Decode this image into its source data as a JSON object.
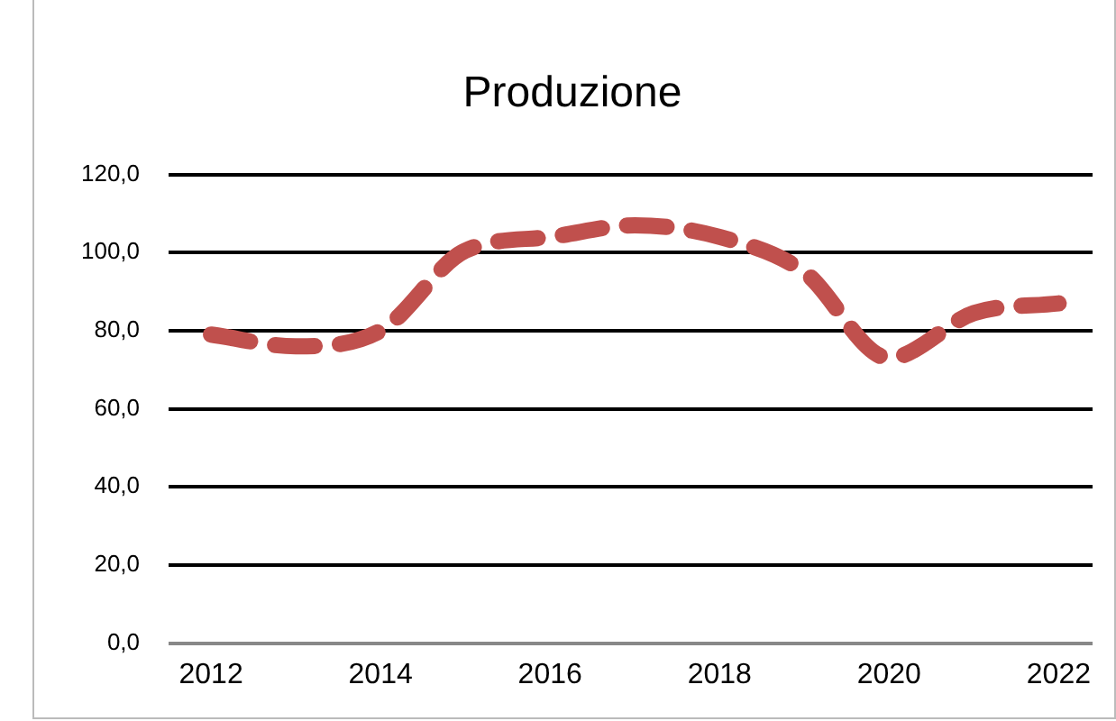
{
  "chart_data": {
    "type": "line",
    "title": "Produzione",
    "x": [
      2012,
      2013,
      2014,
      2015,
      2016,
      2017,
      2018,
      2019,
      2020,
      2021,
      2022
    ],
    "series": [
      {
        "color": "#c0504d",
        "values": [
          79,
          76,
          80,
          100.5,
          104,
          107,
          104,
          95,
          73,
          84.5,
          87
        ]
      }
    ],
    "xlim": [
      2011.5,
      2022.4
    ],
    "xticks": [
      2012,
      2014,
      2016,
      2018,
      2020,
      2022
    ],
    "ylim": [
      0,
      120
    ],
    "yticks": [
      {
        "value": 0,
        "label": "0,0"
      },
      {
        "value": 20,
        "label": "20,0"
      },
      {
        "value": 40,
        "label": "40,0"
      },
      {
        "value": 60,
        "label": "60,0"
      },
      {
        "value": 80,
        "label": "80,0"
      },
      {
        "value": 100,
        "label": "100,0"
      },
      {
        "value": 120,
        "label": "120,0"
      }
    ],
    "grid": "y",
    "legend": false,
    "marker": "none",
    "line_style": "dashed"
  }
}
